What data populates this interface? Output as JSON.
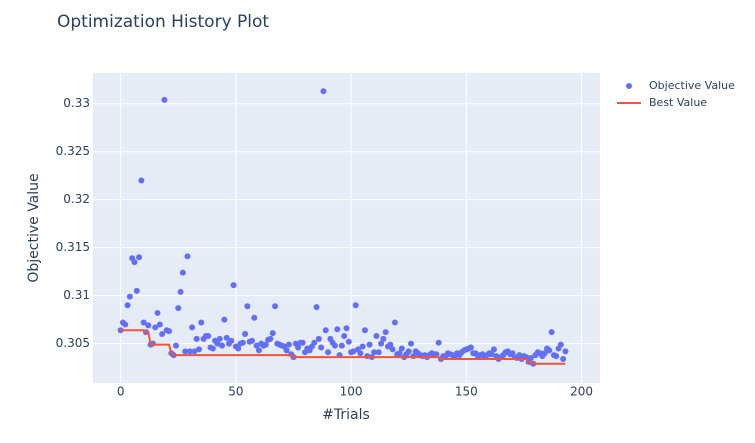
{
  "chart_data": {
    "type": "scatter",
    "title": "Optimization History Plot",
    "x_label": "#Trials",
    "y_label": "Objective Value",
    "xlim": [
      -12,
      208
    ],
    "ylim": [
      0.3009,
      0.3332
    ],
    "xticks": [
      0,
      50,
      100,
      150,
      200
    ],
    "yticks": [
      0.305,
      0.31,
      0.315,
      0.32,
      0.325,
      0.33
    ],
    "grid": true,
    "legend": "top-right",
    "x": [
      0,
      1,
      2,
      3,
      4,
      5,
      6,
      7,
      8,
      9,
      10,
      11,
      12,
      13,
      14,
      15,
      16,
      17,
      18,
      19,
      20,
      21,
      22,
      23,
      24,
      25,
      26,
      27,
      28,
      29,
      30,
      31,
      32,
      33,
      34,
      35,
      36,
      37,
      38,
      39,
      40,
      41,
      42,
      43,
      44,
      45,
      46,
      47,
      48,
      49,
      50,
      51,
      52,
      53,
      54,
      55,
      56,
      57,
      58,
      59,
      60,
      61,
      62,
      63,
      64,
      65,
      66,
      67,
      68,
      69,
      70,
      71,
      72,
      73,
      74,
      75,
      76,
      77,
      78,
      79,
      80,
      81,
      82,
      83,
      84,
      85,
      86,
      87,
      88,
      89,
      90,
      91,
      92,
      93,
      94,
      95,
      96,
      97,
      98,
      99,
      100,
      101,
      102,
      103,
      104,
      105,
      106,
      107,
      108,
      109,
      110,
      111,
      112,
      113,
      114,
      115,
      116,
      117,
      118,
      119,
      120,
      121,
      122,
      123,
      124,
      125,
      126,
      127,
      128,
      129,
      130,
      131,
      132,
      133,
      134,
      135,
      136,
      137,
      138,
      139,
      140,
      141,
      142,
      143,
      144,
      145,
      146,
      147,
      148,
      149,
      150,
      151,
      152,
      153,
      154,
      155,
      156,
      157,
      158,
      159,
      160,
      161,
      162,
      163,
      164,
      165,
      166,
      167,
      168,
      169,
      170,
      171,
      172,
      173,
      174,
      175,
      176,
      177,
      178,
      179,
      180,
      181,
      182,
      183,
      184,
      185,
      186,
      187,
      188,
      189,
      190,
      191,
      192,
      193
    ],
    "series": [
      {
        "name": "Objective Value",
        "color": "#636efa",
        "mode": "markers",
        "values": [
          0.3064,
          0.3072,
          0.307,
          0.309,
          0.3099,
          0.3139,
          0.3135,
          0.3105,
          0.314,
          0.322,
          0.3072,
          0.3062,
          0.3069,
          0.3049,
          0.305,
          0.3067,
          0.3082,
          0.307,
          0.306,
          0.3304,
          0.3064,
          0.3063,
          0.304,
          0.3038,
          0.3048,
          0.3087,
          0.3104,
          0.3124,
          0.3042,
          0.3141,
          0.3042,
          0.3067,
          0.3042,
          0.3055,
          0.3044,
          0.3072,
          0.3055,
          0.3058,
          0.3058,
          0.3046,
          0.3045,
          0.3053,
          0.305,
          0.3055,
          0.3048,
          0.3075,
          0.3056,
          0.305,
          0.3053,
          0.3111,
          0.3047,
          0.3045,
          0.305,
          0.3051,
          0.306,
          0.3089,
          0.3052,
          0.3053,
          0.3077,
          0.3048,
          0.3043,
          0.305,
          0.3048,
          0.3049,
          0.3054,
          0.3055,
          0.3061,
          0.3089,
          0.305,
          0.3049,
          0.3048,
          0.3047,
          0.3043,
          0.3049,
          0.3039,
          0.3036,
          0.305,
          0.3046,
          0.3051,
          0.3051,
          0.3041,
          0.3045,
          0.3043,
          0.3047,
          0.3051,
          0.3088,
          0.3055,
          0.3046,
          0.3313,
          0.3064,
          0.3041,
          0.3055,
          0.3051,
          0.3048,
          0.3065,
          0.3038,
          0.3048,
          0.3058,
          0.3066,
          0.3052,
          0.3041,
          0.3042,
          0.309,
          0.3044,
          0.304,
          0.3047,
          0.3064,
          0.3037,
          0.3049,
          0.3036,
          0.3041,
          0.3058,
          0.3041,
          0.305,
          0.3055,
          0.3062,
          0.3047,
          0.3049,
          0.3044,
          0.3072,
          0.3039,
          0.304,
          0.3045,
          0.3036,
          0.3039,
          0.3042,
          0.305,
          0.3037,
          0.3042,
          0.304,
          0.3038,
          0.3037,
          0.3038,
          0.3036,
          0.3038,
          0.304,
          0.3039,
          0.3039,
          0.3051,
          0.3034,
          0.3037,
          0.3037,
          0.304,
          0.3039,
          0.3038,
          0.3037,
          0.304,
          0.3038,
          0.3041,
          0.3043,
          0.3044,
          0.3045,
          0.3046,
          0.304,
          0.304,
          0.3037,
          0.3038,
          0.3039,
          0.3036,
          0.3038,
          0.304,
          0.3039,
          0.3044,
          0.3037,
          0.3034,
          0.3036,
          0.3038,
          0.3041,
          0.3042,
          0.3039,
          0.304,
          0.3036,
          0.3035,
          0.3038,
          0.3034,
          0.3037,
          0.3036,
          0.3031,
          0.3035,
          0.3029,
          0.3038,
          0.3041,
          0.304,
          0.3037,
          0.304,
          0.3045,
          0.3043,
          0.3062,
          0.3038,
          0.3037,
          0.3045,
          0.3049,
          0.3034,
          0.3042
        ]
      },
      {
        "name": "Best Value",
        "color": "#ef553b",
        "mode": "lines",
        "values": [
          0.3064,
          0.3064,
          0.3064,
          0.3064,
          0.3064,
          0.3064,
          0.3064,
          0.3064,
          0.3064,
          0.3064,
          0.3064,
          0.3062,
          0.3062,
          0.3049,
          0.3049,
          0.3049,
          0.3049,
          0.3049,
          0.3049,
          0.3049,
          0.3049,
          0.3049,
          0.304,
          0.3038,
          0.3038,
          0.3038,
          0.3038,
          0.3038,
          0.3038,
          0.3038,
          0.3038,
          0.3038,
          0.3038,
          0.3038,
          0.3038,
          0.3038,
          0.3038,
          0.3038,
          0.3038,
          0.3038,
          0.3038,
          0.3038,
          0.3038,
          0.3038,
          0.3038,
          0.3038,
          0.3038,
          0.3038,
          0.3038,
          0.3038,
          0.3038,
          0.3038,
          0.3038,
          0.3038,
          0.3038,
          0.3038,
          0.3038,
          0.3038,
          0.3038,
          0.3038,
          0.3038,
          0.3038,
          0.3038,
          0.3038,
          0.3038,
          0.3038,
          0.3038,
          0.3038,
          0.3038,
          0.3038,
          0.3038,
          0.3038,
          0.3038,
          0.3038,
          0.3038,
          0.3036,
          0.3036,
          0.3036,
          0.3036,
          0.3036,
          0.3036,
          0.3036,
          0.3036,
          0.3036,
          0.3036,
          0.3036,
          0.3036,
          0.3036,
          0.3036,
          0.3036,
          0.3036,
          0.3036,
          0.3036,
          0.3036,
          0.3036,
          0.3036,
          0.3036,
          0.3036,
          0.3036,
          0.3036,
          0.3036,
          0.3036,
          0.3036,
          0.3036,
          0.3036,
          0.3036,
          0.3036,
          0.3036,
          0.3036,
          0.3036,
          0.3036,
          0.3036,
          0.3036,
          0.3036,
          0.3036,
          0.3036,
          0.3036,
          0.3036,
          0.3036,
          0.3036,
          0.3036,
          0.3036,
          0.3036,
          0.3036,
          0.3036,
          0.3036,
          0.3036,
          0.3036,
          0.3036,
          0.3036,
          0.3036,
          0.3036,
          0.3036,
          0.3036,
          0.3036,
          0.3036,
          0.3036,
          0.3036,
          0.3036,
          0.3034,
          0.3034,
          0.3034,
          0.3034,
          0.3034,
          0.3034,
          0.3034,
          0.3034,
          0.3034,
          0.3034,
          0.3034,
          0.3034,
          0.3034,
          0.3034,
          0.3034,
          0.3034,
          0.3034,
          0.3034,
          0.3034,
          0.3034,
          0.3034,
          0.3034,
          0.3034,
          0.3034,
          0.3034,
          0.3034,
          0.3034,
          0.3034,
          0.3034,
          0.3034,
          0.3034,
          0.3034,
          0.3034,
          0.3034,
          0.3034,
          0.3034,
          0.3034,
          0.3034,
          0.3031,
          0.3031,
          0.3029,
          0.3029,
          0.3029,
          0.3029,
          0.3029,
          0.3029,
          0.3029,
          0.3029,
          0.3029,
          0.3029,
          0.3029,
          0.3029,
          0.3029,
          0.3029,
          0.3029
        ]
      }
    ]
  }
}
